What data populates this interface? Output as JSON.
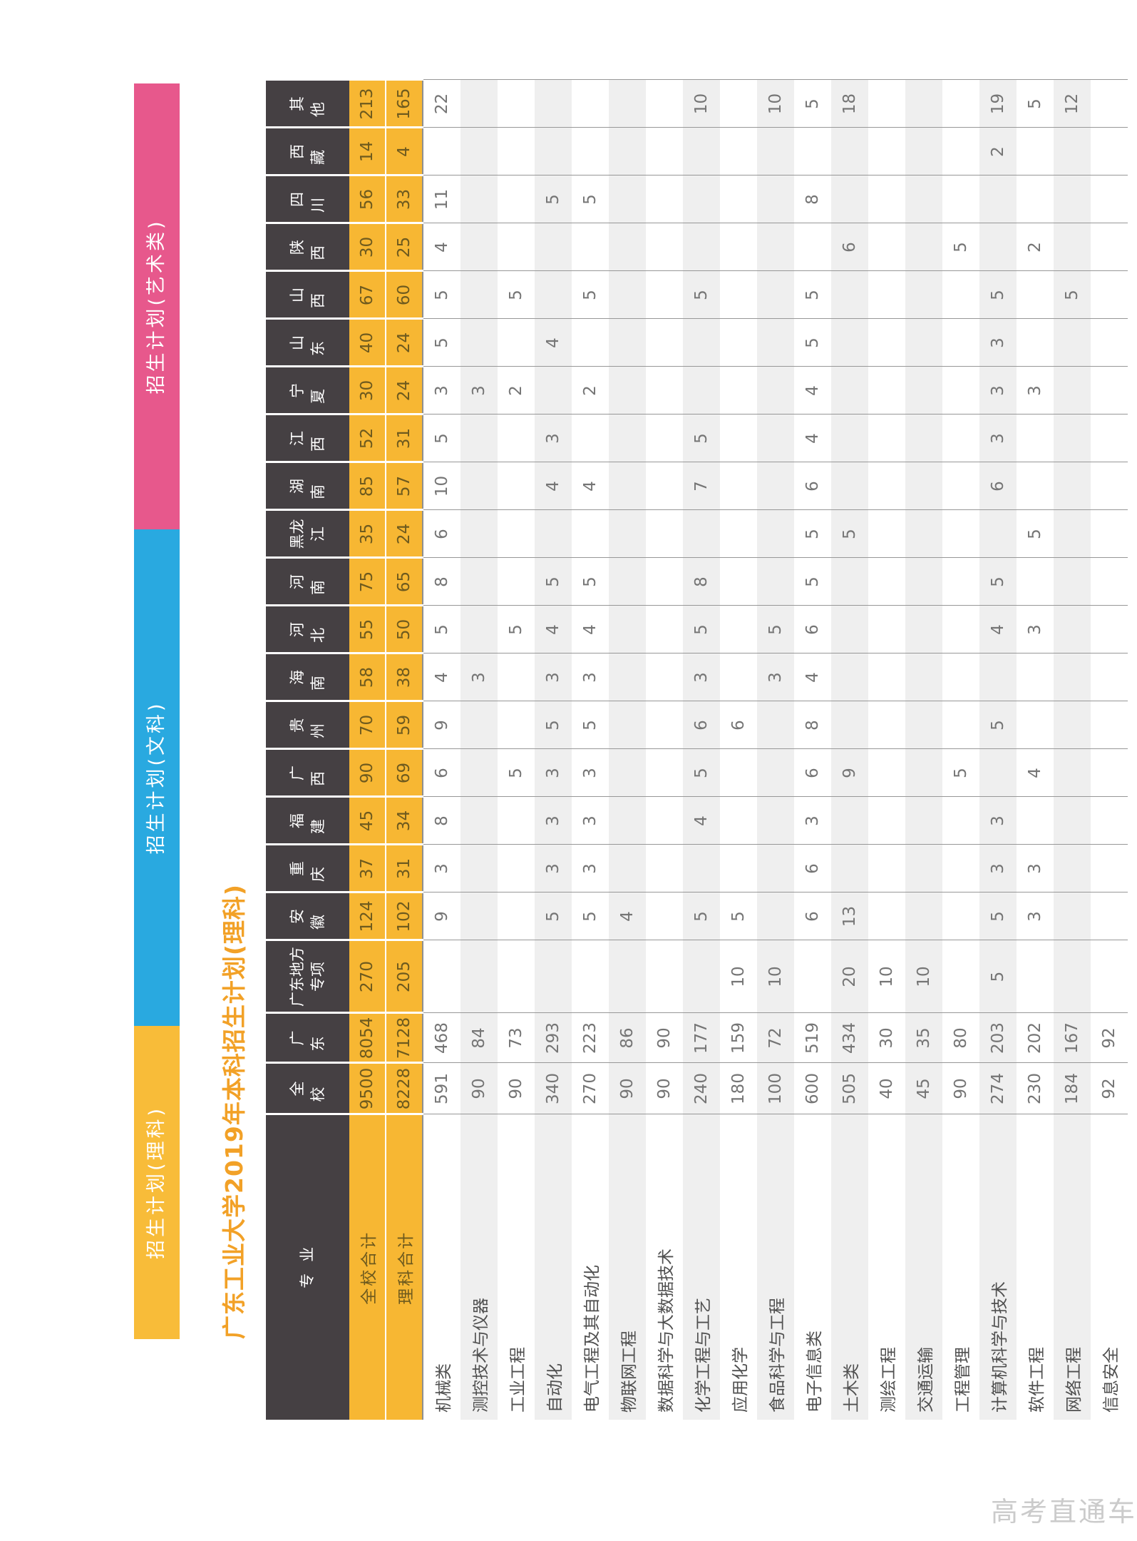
{
  "title": "广东工业大学2019年本科招生计划(理科)",
  "watermark": "高考直通车",
  "tabs": [
    {
      "label": "招生计划(理科)",
      "color": "#F8BC39"
    },
    {
      "label": "招生计划(文科)",
      "color": "#29A9E0"
    },
    {
      "label": "招生计划(艺术类)",
      "color": "#E7588C"
    }
  ],
  "colors": {
    "header_bg": "#454043",
    "totals_bg": "#F7B733",
    "totals_text": "#6E5A1E",
    "row_stripe": "#EFEFEF",
    "title_text": "#F2A127",
    "tab_text": "#FFFFFF"
  },
  "table": {
    "col_headers": [
      "专业",
      "全校",
      "广东",
      "广东地方专项",
      "安徽",
      "重庆",
      "福建",
      "广西",
      "贵州",
      "海南",
      "河北",
      "河南",
      "黑龙江",
      "湖南",
      "江西",
      "宁夏",
      "山东",
      "山西",
      "陕西",
      "四川",
      "西藏",
      "其他"
    ],
    "total_rows": [
      {
        "label": "全校合计",
        "values": [
          "9500",
          "8054",
          "270",
          "124",
          "37",
          "45",
          "90",
          "70",
          "58",
          "55",
          "75",
          "35",
          "85",
          "52",
          "30",
          "40",
          "67",
          "30",
          "56",
          "14",
          "213"
        ]
      },
      {
        "label": "理科合计",
        "values": [
          "8228",
          "7128",
          "205",
          "102",
          "31",
          "34",
          "69",
          "59",
          "38",
          "50",
          "65",
          "24",
          "57",
          "31",
          "24",
          "24",
          "60",
          "25",
          "33",
          "4",
          "165"
        ]
      }
    ],
    "rows": [
      {
        "major": "机械类",
        "values": [
          "591",
          "468",
          "",
          "9",
          "3",
          "8",
          "6",
          "9",
          "4",
          "5",
          "8",
          "6",
          "10",
          "5",
          "3",
          "5",
          "5",
          "4",
          "11",
          "",
          "22"
        ]
      },
      {
        "major": "测控技术与仪器",
        "values": [
          "90",
          "84",
          "",
          "",
          "",
          "",
          "",
          "",
          "3",
          "",
          "",
          "",
          "",
          "",
          "3",
          "",
          "",
          "",
          "",
          "",
          ""
        ]
      },
      {
        "major": "工业工程",
        "values": [
          "90",
          "73",
          "",
          "",
          "",
          "",
          "5",
          "",
          "",
          "5",
          "",
          "",
          "",
          "",
          "2",
          "",
          "5",
          "",
          "",
          "",
          ""
        ]
      },
      {
        "major": "自动化",
        "values": [
          "340",
          "293",
          "",
          "5",
          "3",
          "3",
          "3",
          "5",
          "3",
          "4",
          "5",
          "",
          "4",
          "3",
          "",
          "4",
          "",
          "",
          "5",
          "",
          ""
        ]
      },
      {
        "major": "电气工程及其自动化",
        "values": [
          "270",
          "223",
          "",
          "5",
          "3",
          "3",
          "3",
          "5",
          "3",
          "4",
          "5",
          "",
          "4",
          "",
          "2",
          "",
          "5",
          "",
          "5",
          "",
          ""
        ]
      },
      {
        "major": "物联网工程",
        "values": [
          "90",
          "86",
          "",
          "4",
          "",
          "",
          "",
          "",
          "",
          "",
          "",
          "",
          "",
          "",
          "",
          "",
          "",
          "",
          "",
          "",
          ""
        ]
      },
      {
        "major": "数据科学与大数据技术",
        "values": [
          "90",
          "90",
          "",
          "",
          "",
          "",
          "",
          "",
          "",
          "",
          "",
          "",
          "",
          "",
          "",
          "",
          "",
          "",
          "",
          "",
          ""
        ]
      },
      {
        "major": "化学工程与工艺",
        "values": [
          "240",
          "177",
          "",
          "5",
          "",
          "4",
          "5",
          "6",
          "3",
          "5",
          "8",
          "",
          "7",
          "5",
          "",
          "",
          "5",
          "",
          "",
          "",
          "10"
        ]
      },
      {
        "major": "应用化学",
        "values": [
          "180",
          "159",
          "10",
          "5",
          "",
          "",
          "",
          "6",
          "",
          "",
          "",
          "",
          "",
          "",
          "",
          "",
          "",
          "",
          "",
          "",
          ""
        ]
      },
      {
        "major": "食品科学与工程",
        "values": [
          "100",
          "72",
          "10",
          "",
          "",
          "",
          "",
          "",
          "3",
          "5",
          "",
          "",
          "",
          "",
          "",
          "",
          "",
          "",
          "",
          "",
          "10"
        ]
      },
      {
        "major": "电子信息类",
        "values": [
          "600",
          "519",
          "",
          "6",
          "6",
          "3",
          "6",
          "8",
          "4",
          "6",
          "5",
          "5",
          "6",
          "4",
          "4",
          "5",
          "5",
          "",
          "8",
          "",
          "5"
        ]
      },
      {
        "major": "土木类",
        "values": [
          "505",
          "434",
          "20",
          "13",
          "",
          "",
          "9",
          "",
          "",
          "",
          "",
          "5",
          "",
          "",
          "",
          "",
          "",
          "6",
          "",
          "",
          "18"
        ]
      },
      {
        "major": "测绘工程",
        "values": [
          "40",
          "30",
          "10",
          "",
          "",
          "",
          "",
          "",
          "",
          "",
          "",
          "",
          "",
          "",
          "",
          "",
          "",
          "",
          "",
          "",
          ""
        ]
      },
      {
        "major": "交通运输",
        "values": [
          "45",
          "35",
          "10",
          "",
          "",
          "",
          "",
          "",
          "",
          "",
          "",
          "",
          "",
          "",
          "",
          "",
          "",
          "",
          "",
          "",
          ""
        ]
      },
      {
        "major": "工程管理",
        "values": [
          "90",
          "80",
          "",
          "",
          "",
          "",
          "5",
          "",
          "",
          "",
          "",
          "",
          "",
          "",
          "",
          "",
          "",
          "5",
          "",
          "",
          ""
        ]
      },
      {
        "major": "计算机科学与技术",
        "values": [
          "274",
          "203",
          "5",
          "5",
          "3",
          "3",
          "",
          "5",
          "",
          "4",
          "5",
          "",
          "6",
          "3",
          "3",
          "3",
          "5",
          "",
          "",
          "2",
          "19"
        ]
      },
      {
        "major": "软件工程",
        "values": [
          "230",
          "202",
          "",
          "3",
          "3",
          "",
          "4",
          "",
          "",
          "3",
          "",
          "5",
          "",
          "",
          "3",
          "",
          "",
          "2",
          "",
          "",
          "5"
        ]
      },
      {
        "major": "网络工程",
        "values": [
          "184",
          "167",
          "",
          "",
          "",
          "",
          "",
          "",
          "",
          "",
          "",
          "",
          "",
          "",
          "",
          "",
          "5",
          "",
          "",
          "",
          "12"
        ]
      },
      {
        "major": "信息安全",
        "values": [
          "92",
          "92",
          "",
          "",
          "",
          "",
          "",
          "",
          "",
          "",
          "",
          "",
          "",
          "",
          "",
          "",
          "",
          "",
          "",
          "",
          ""
        ]
      }
    ]
  }
}
